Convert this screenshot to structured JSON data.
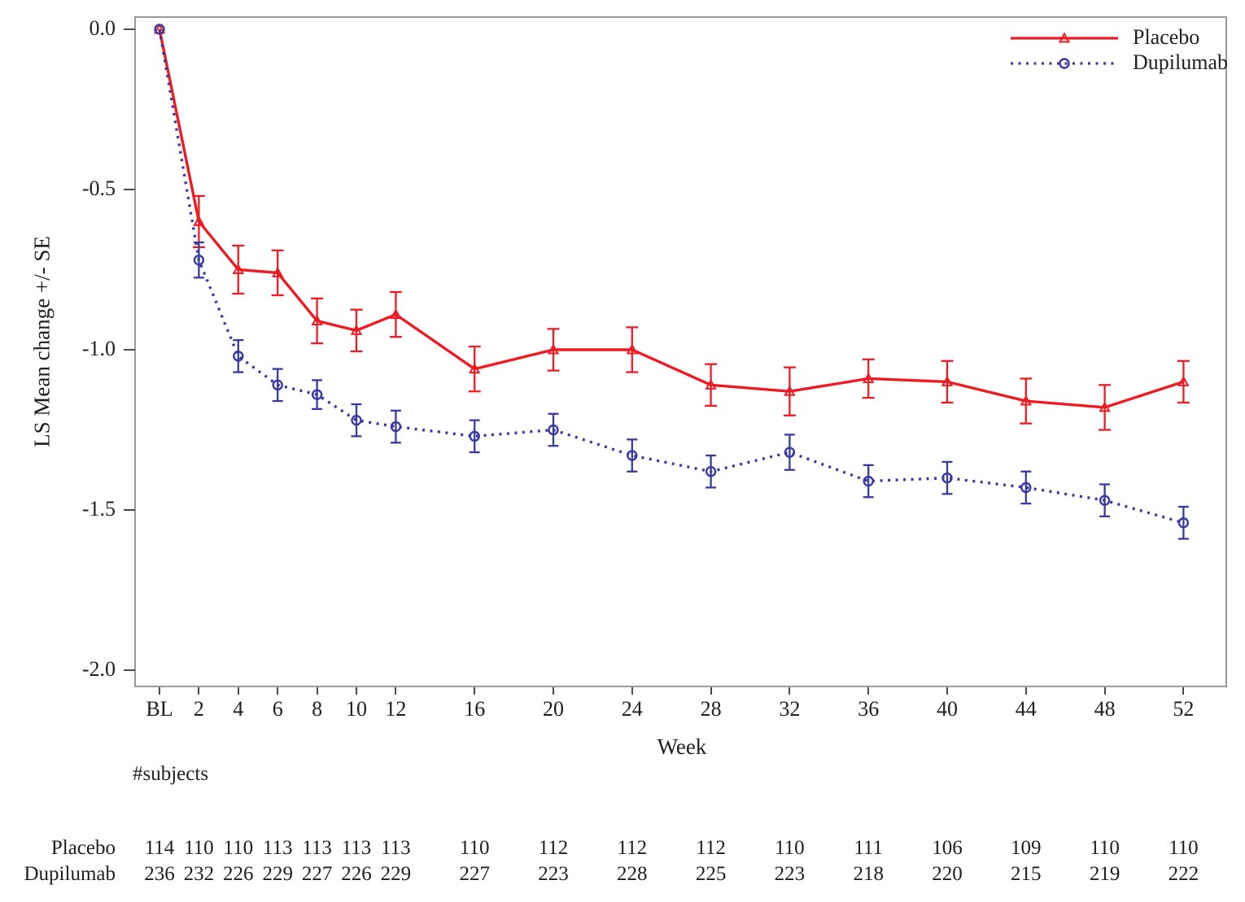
{
  "figure": {
    "y_axis": {
      "title": "LS Mean change +/- SE",
      "tick_labels": [
        "0.0",
        "-0.5",
        "-1.0",
        "-1.5",
        "-2.0"
      ],
      "tick_values": [
        0.0,
        -0.5,
        -1.0,
        -1.5,
        -2.0
      ]
    },
    "x_axis": {
      "title": "Week",
      "tick_labels": [
        "BL",
        "2",
        "4",
        "6",
        "8",
        "10",
        "12",
        "16",
        "20",
        "24",
        "28",
        "32",
        "36",
        "40",
        "44",
        "48",
        "52"
      ],
      "tick_weeks": [
        0,
        2,
        4,
        6,
        8,
        10,
        12,
        16,
        20,
        24,
        28,
        32,
        36,
        40,
        44,
        48,
        52
      ]
    },
    "legend": {
      "entries": [
        "Placebo",
        "Dupilumab"
      ]
    },
    "colors": {
      "placebo": "#ed1c24",
      "dupilumab": "#3939a4",
      "frame": "#9a9a9a",
      "tick": "#4a4a4a",
      "text": "#1f1f1f"
    }
  },
  "chart_data": {
    "type": "line",
    "title": "",
    "xlabel": "Week",
    "ylabel": "LS Mean change +/- SE",
    "x_categories": [
      "BL",
      "2",
      "4",
      "6",
      "8",
      "10",
      "12",
      "16",
      "20",
      "24",
      "28",
      "32",
      "36",
      "40",
      "44",
      "48",
      "52"
    ],
    "x_weeks": [
      0,
      2,
      4,
      6,
      8,
      10,
      12,
      16,
      20,
      24,
      28,
      32,
      36,
      40,
      44,
      48,
      52
    ],
    "ylim": [
      -2.0,
      0.0
    ],
    "grid": false,
    "legend_position": "top-right-inside",
    "error_bars": "standard error",
    "series": [
      {
        "name": "Placebo",
        "color": "#ed1c24",
        "line_style": "solid",
        "marker": "open-triangle",
        "values": [
          0.0,
          -0.6,
          -0.75,
          -0.76,
          -0.91,
          -0.94,
          -0.89,
          -1.06,
          -1.0,
          -1.0,
          -1.11,
          -1.13,
          -1.09,
          -1.1,
          -1.16,
          -1.18,
          -1.1
        ],
        "se": [
          0,
          0.08,
          0.075,
          0.07,
          0.07,
          0.065,
          0.07,
          0.07,
          0.065,
          0.07,
          0.065,
          0.075,
          0.06,
          0.065,
          0.07,
          0.07,
          0.065
        ]
      },
      {
        "name": "Dupilumab",
        "color": "#3939a4",
        "line_style": "dotted",
        "marker": "open-circle",
        "values": [
          0.0,
          -0.72,
          -1.02,
          -1.11,
          -1.14,
          -1.22,
          -1.24,
          -1.27,
          -1.25,
          -1.33,
          -1.38,
          -1.32,
          -1.41,
          -1.4,
          -1.43,
          -1.47,
          -1.54
        ],
        "se": [
          0,
          0.055,
          0.05,
          0.05,
          0.045,
          0.05,
          0.05,
          0.05,
          0.05,
          0.05,
          0.05,
          0.055,
          0.05,
          0.05,
          0.05,
          0.05,
          0.05
        ]
      }
    ]
  },
  "subjects_table": {
    "header": "#subjects",
    "rows": [
      {
        "label": "Placebo",
        "counts": [
          "114",
          "110",
          "110",
          "113",
          "113",
          "113",
          "113",
          "110",
          "112",
          "112",
          "112",
          "110",
          "111",
          "106",
          "109",
          "110",
          "110"
        ]
      },
      {
        "label": "Dupilumab",
        "counts": [
          "236",
          "232",
          "226",
          "229",
          "227",
          "226",
          "229",
          "227",
          "223",
          "228",
          "225",
          "223",
          "218",
          "220",
          "215",
          "219",
          "222"
        ]
      }
    ]
  }
}
